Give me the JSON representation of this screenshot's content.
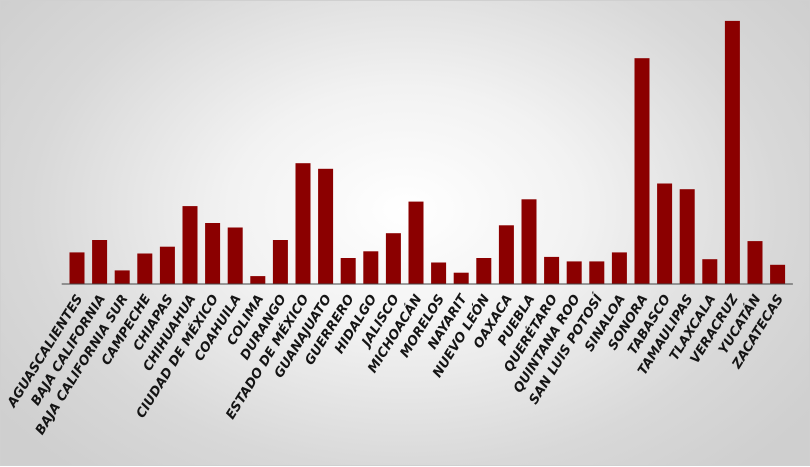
{
  "chart_data": {
    "type": "bar",
    "title": "",
    "xlabel": "",
    "ylabel": "",
    "categories": [
      "AGUASCALIENTES",
      "BAJA CALIFORNIA",
      "BAJA CALIFORNIA SUR",
      "CAMPECHE",
      "CHIAPAS",
      "CHIHUAHUA",
      "CIUDAD DE MÉXICO",
      "COAHUILA",
      "COLIMA",
      "DURANGO",
      "ESTADO DE MÉXICO",
      "GUANAJUATO",
      "GUERRERO",
      "HIDALGO",
      "JALISCO",
      "MICHOACÁN",
      "MORELOS",
      "NAYARIT",
      "NUEVO LEÓN",
      "OAXACA",
      "PUEBLA",
      "QUERÉTARO",
      "QUINTANA ROO",
      "SAN LUIS POTOSÍ",
      "SINALOA",
      "SONORA",
      "TABASCO",
      "TAMAULIPAS",
      "TLAXCALA",
      "VERACRUZ",
      "YUCATÁN",
      "ZACATECAS"
    ],
    "values": [
      28,
      39,
      12,
      27,
      33,
      69,
      54,
      50,
      7,
      39,
      107,
      102,
      23,
      29,
      45,
      73,
      19,
      10,
      23,
      52,
      75,
      24,
      20,
      20,
      28,
      200,
      89,
      84,
      22,
      233,
      38,
      17
    ],
    "ylim": [
      0,
      240
    ],
    "colors": {
      "bar": "#8b0000"
    },
    "grid": false,
    "legend": "none"
  }
}
